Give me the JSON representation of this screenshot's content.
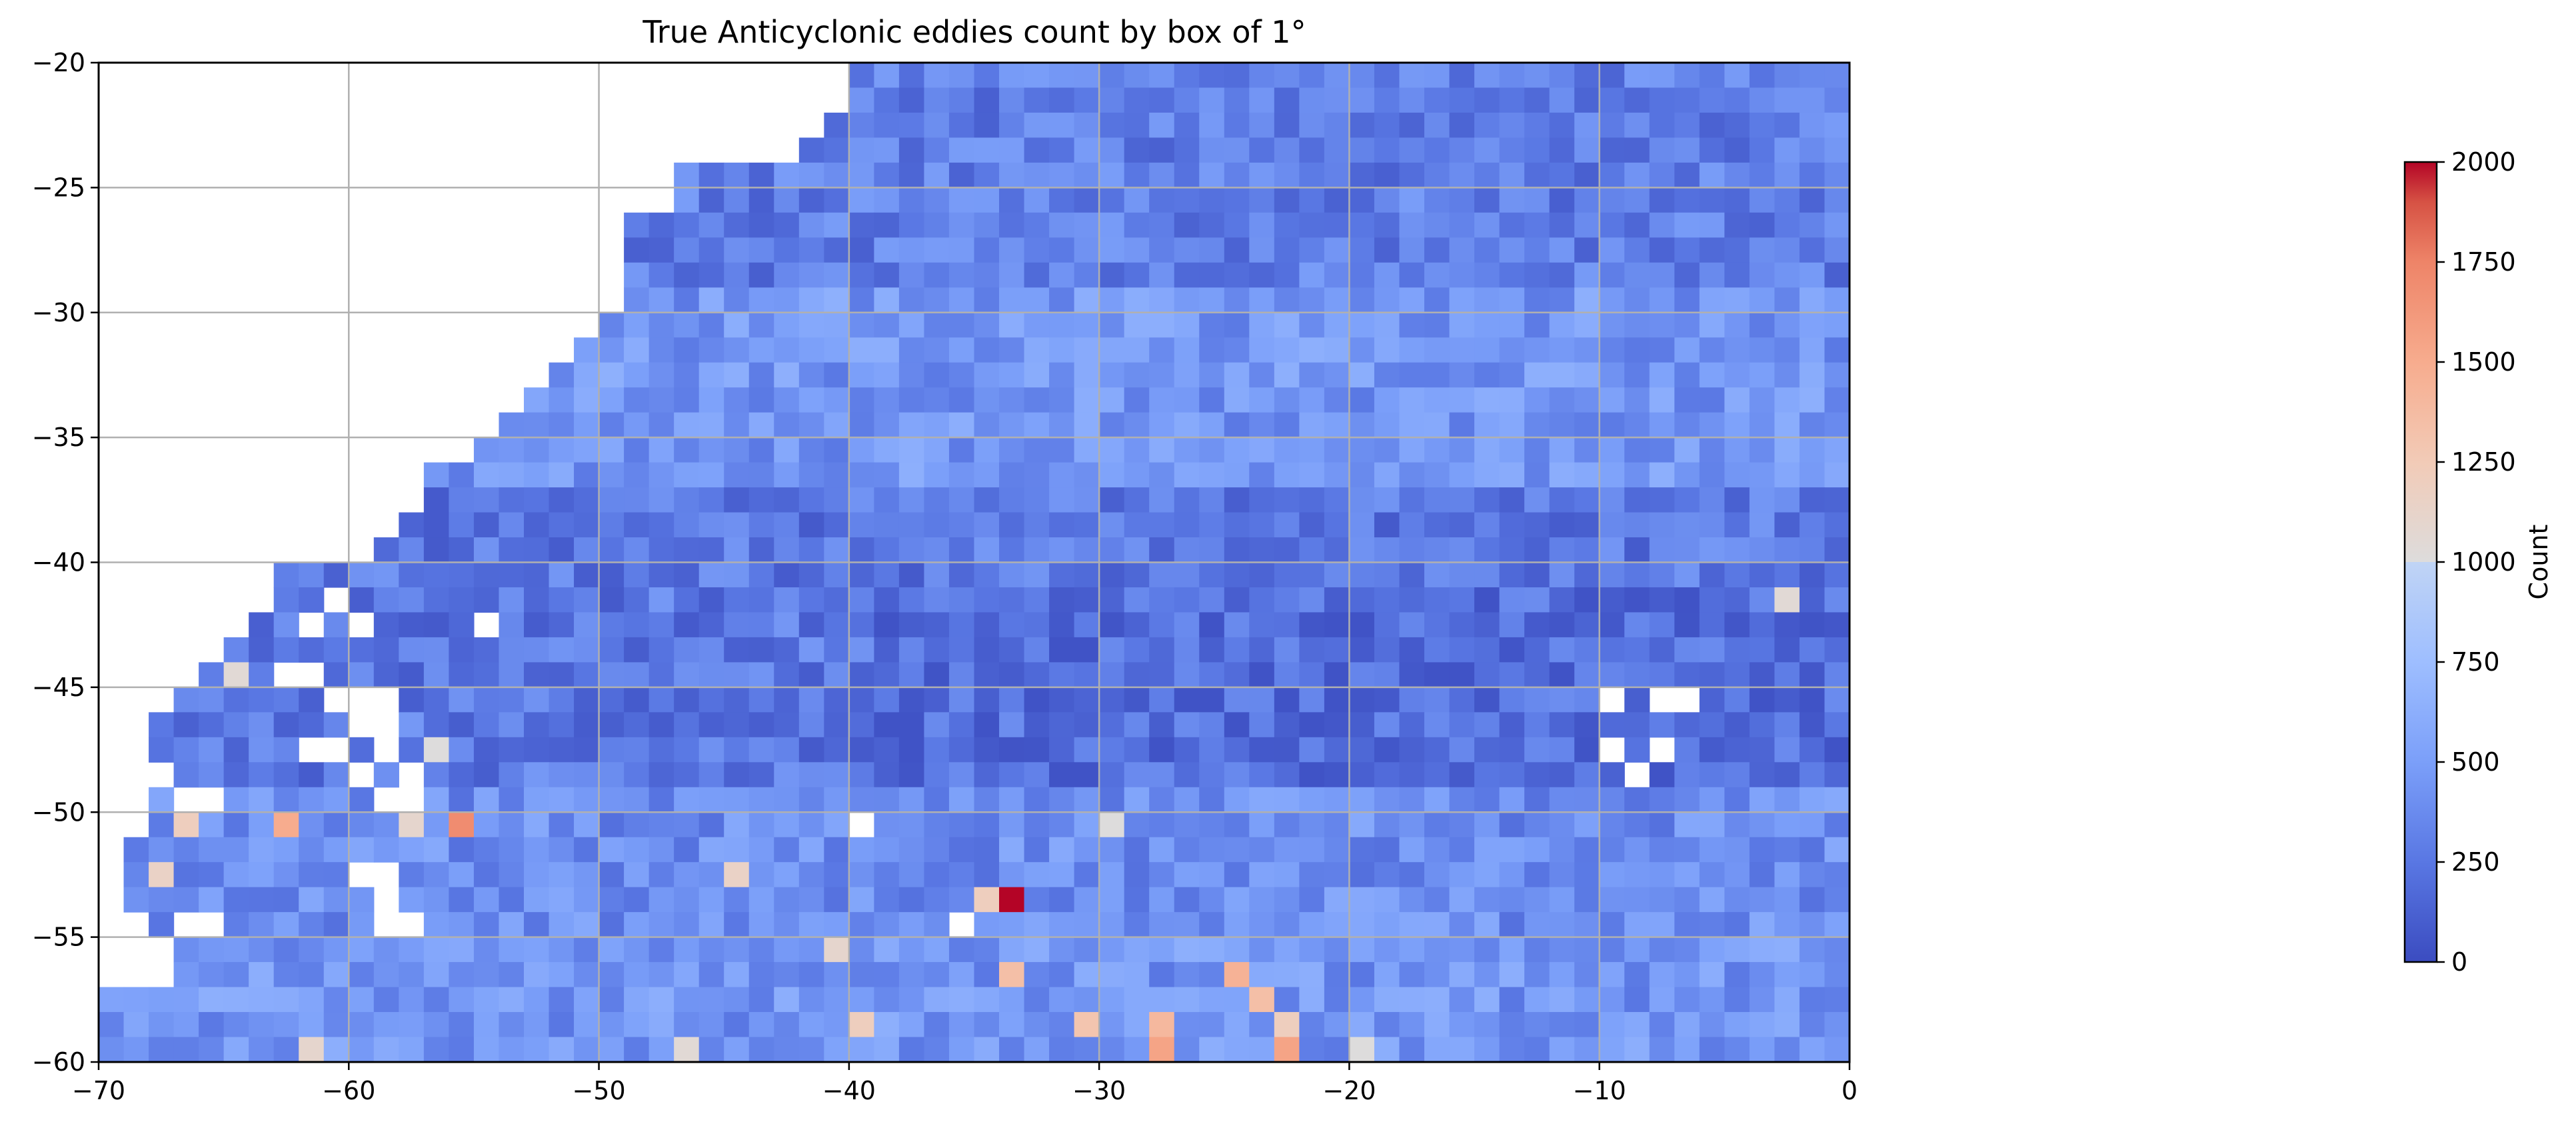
{
  "chart_data": {
    "type": "heatmap",
    "title": "True Anticyclonic eddies count by box of 1°",
    "xlabel": "",
    "ylabel": "",
    "xlim": [
      -70,
      0
    ],
    "ylim": [
      -60,
      -20
    ],
    "x_ticks": [
      "−70",
      "−60",
      "−50",
      "−40",
      "−30",
      "−20",
      "−10",
      "0"
    ],
    "y_ticks": [
      "−20",
      "−25",
      "−30",
      "−35",
      "−40",
      "−45",
      "−50",
      "−55",
      "−60"
    ],
    "x_tick_values": [
      -70,
      -60,
      -50,
      -40,
      -30,
      -20,
      -10,
      0
    ],
    "y_tick_values": [
      -20,
      -25,
      -30,
      -35,
      -40,
      -45,
      -50,
      -55,
      -60
    ],
    "grid": true,
    "colormap": "coolwarm",
    "colorbar": {
      "label": "Count",
      "range": [
        0,
        2000
      ],
      "ticks": [
        "0",
        "250",
        "500",
        "750",
        "1000",
        "1250",
        "1500",
        "1750",
        "2000"
      ],
      "tick_values": [
        0,
        250,
        500,
        750,
        1000,
        1250,
        1500,
        1750,
        2000
      ]
    },
    "colors": {
      "low": "#3b4cc0",
      "mid": "#dddcdc",
      "high": "#b40426",
      "grid": "#b0b0b0"
    },
    "cell_size_deg": 1,
    "data_mask_description_rows_lat_start": -20,
    "ocean_west_boundary_by_lat": [
      [
        -20,
        -40
      ],
      [
        -21,
        -40
      ],
      [
        -22,
        -41
      ],
      [
        -23,
        -42
      ],
      [
        -24,
        -47
      ],
      [
        -25,
        -47
      ],
      [
        -26,
        -49
      ],
      [
        -27,
        -49
      ],
      [
        -28,
        -49
      ],
      [
        -29,
        -49
      ],
      [
        -30,
        -50
      ],
      [
        -31,
        -51
      ],
      [
        -32,
        -52
      ],
      [
        -33,
        -53
      ],
      [
        -34,
        -54
      ],
      [
        -35,
        -55
      ],
      [
        -36,
        -57
      ],
      [
        -37,
        -57
      ],
      [
        -38,
        -58
      ],
      [
        -39,
        -59
      ],
      [
        -40,
        -63
      ],
      [
        -41,
        -63
      ],
      [
        -42,
        -64
      ],
      [
        -43,
        -65
      ],
      [
        -44,
        -66
      ],
      [
        -45,
        -67
      ],
      [
        -46,
        -68
      ],
      [
        -47,
        -68
      ],
      [
        -48,
        -67
      ],
      [
        -49,
        -68
      ],
      [
        -50,
        -68
      ],
      [
        -51,
        -69
      ],
      [
        -52,
        -69
      ],
      [
        -53,
        -69
      ],
      [
        -54,
        -68
      ],
      [
        -55,
        -67
      ],
      [
        -56,
        -67
      ],
      [
        -57,
        -70
      ],
      [
        -58,
        -70
      ],
      [
        -59,
        -70
      ]
    ],
    "highlight_cells": [
      {
        "lon": -34,
        "lat": -53,
        "value": 2000
      },
      {
        "lon": -56,
        "lat": -50,
        "value": 1700
      },
      {
        "lon": -63,
        "lat": -50,
        "value": 1500
      },
      {
        "lon": -67,
        "lat": -50,
        "value": 1200
      },
      {
        "lon": -68,
        "lat": -52,
        "value": 1150
      },
      {
        "lon": -58,
        "lat": -50,
        "value": 1100
      },
      {
        "lon": -45,
        "lat": -52,
        "value": 1150
      },
      {
        "lon": -35,
        "lat": -53,
        "value": 1200
      },
      {
        "lon": -34,
        "lat": -56,
        "value": 1350
      },
      {
        "lon": -25,
        "lat": -56,
        "value": 1450
      },
      {
        "lon": -24,
        "lat": -57,
        "value": 1350
      },
      {
        "lon": -31,
        "lat": -58,
        "value": 1300
      },
      {
        "lon": -28,
        "lat": -58,
        "value": 1400
      },
      {
        "lon": -28,
        "lat": -59,
        "value": 1550
      },
      {
        "lon": -23,
        "lat": -58,
        "value": 1200
      },
      {
        "lon": -23,
        "lat": -59,
        "value": 1550
      },
      {
        "lon": -52,
        "lat": -60,
        "value": 1750
      },
      {
        "lon": -37,
        "lat": -60,
        "value": 1750
      },
      {
        "lon": -40,
        "lat": -58,
        "value": 1200
      },
      {
        "lon": -41,
        "lat": -55,
        "value": 1100
      },
      {
        "lon": -62,
        "lat": -59,
        "value": 1100
      },
      {
        "lon": -65,
        "lat": -44,
        "value": 1050
      },
      {
        "lon": -57,
        "lat": -47,
        "value": 1000
      },
      {
        "lon": -3,
        "lat": -41,
        "value": 1050
      },
      {
        "lon": -30,
        "lat": -50,
        "value": 1000
      },
      {
        "lon": -50,
        "lat": -60,
        "value": 1050
      },
      {
        "lon": -45,
        "lat": -60,
        "value": 1000
      },
      {
        "lon": -47,
        "lat": -59,
        "value": 1050
      },
      {
        "lon": -20,
        "lat": -59,
        "value": 1000
      }
    ],
    "empty_cells": [
      [
        -65,
        -41
      ],
      [
        -64,
        -41
      ],
      [
        -61,
        -41
      ],
      [
        -62,
        -42
      ],
      [
        -60,
        -42
      ],
      [
        -55,
        -42
      ],
      [
        -63,
        -44
      ],
      [
        -62,
        -44
      ],
      [
        -61,
        -45
      ],
      [
        -60,
        -45
      ],
      [
        -59,
        -45
      ],
      [
        -60,
        -46
      ],
      [
        -59,
        -46
      ],
      [
        -62,
        -47
      ],
      [
        -61,
        -47
      ],
      [
        -59,
        -47
      ],
      [
        -58,
        -48
      ],
      [
        -60,
        -48
      ],
      [
        -59,
        -49
      ],
      [
        -58,
        -49
      ],
      [
        -66,
        -49
      ],
      [
        -67,
        -49
      ],
      [
        -60,
        -52
      ],
      [
        -59,
        -52
      ],
      [
        -59,
        -53
      ],
      [
        -59,
        -54
      ],
      [
        -58,
        -54
      ],
      [
        -67,
        -54
      ],
      [
        -66,
        -54
      ],
      [
        -40,
        -50
      ],
      [
        -36,
        -54
      ],
      [
        -10,
        -45
      ],
      [
        -8,
        -45
      ],
      [
        -7,
        -45
      ],
      [
        -10,
        -47
      ],
      [
        -8,
        -47
      ],
      [
        -9,
        -48
      ],
      [
        0,
        -51
      ],
      [
        -15,
        -60
      ],
      [
        -8,
        -60
      ]
    ]
  }
}
